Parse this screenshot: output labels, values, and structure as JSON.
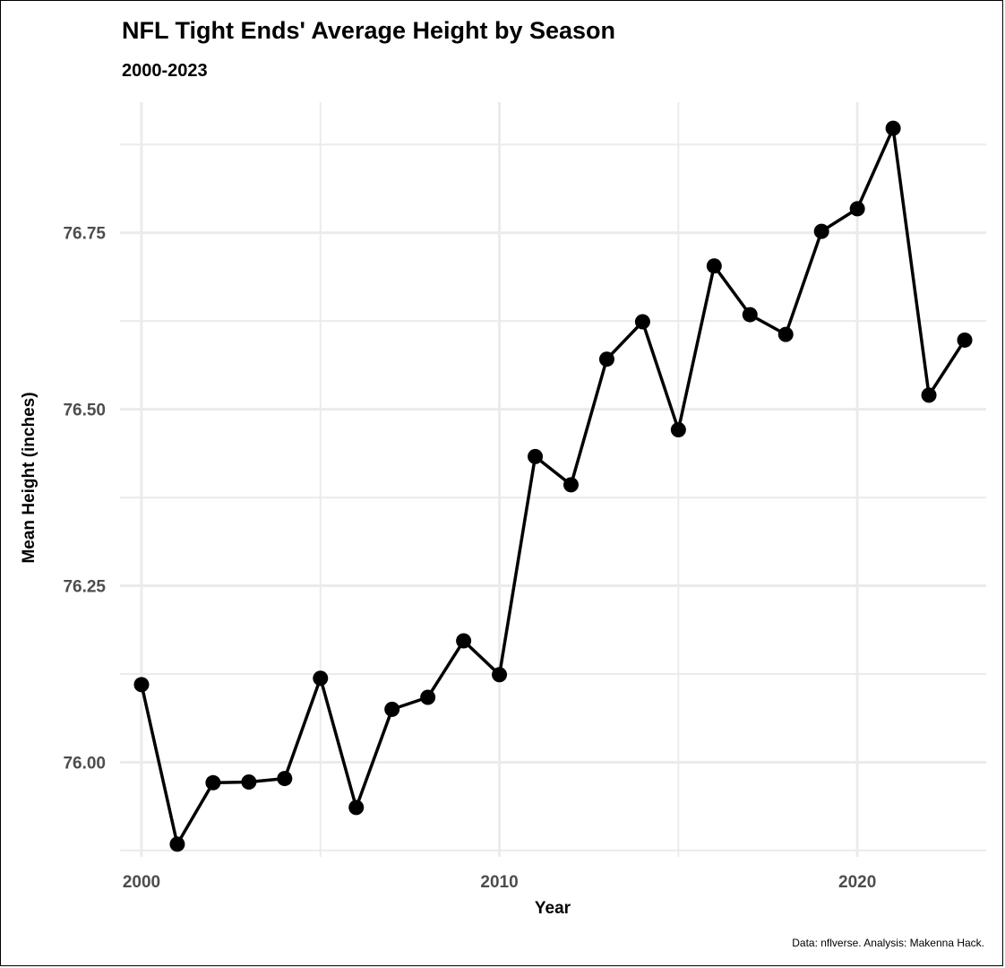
{
  "chart_data": {
    "type": "line",
    "title": "NFL Tight Ends' Average Height by Season",
    "subtitle": "2000-2023",
    "xlabel": "Year",
    "ylabel": "Mean Height (inches)",
    "caption": "Data: nflverse. Analysis: Makenna Hack.",
    "xlim": [
      1999.4,
      2023.6
    ],
    "ylim": [
      75.866,
      76.935
    ],
    "x_ticks": [
      2000,
      2010,
      2020
    ],
    "x_tick_labels": [
      "2000",
      "2010",
      "2020"
    ],
    "x_minor_ticks": [
      2005,
      2015
    ],
    "y_ticks": [
      76.0,
      76.25,
      76.5,
      76.75
    ],
    "y_tick_labels": [
      "76.00",
      "76.25",
      "76.50",
      "76.75"
    ],
    "y_minor_ticks": [
      75.875,
      76.125,
      76.375,
      76.625,
      76.875
    ],
    "grid": true,
    "legend": "none",
    "color": "#000000",
    "series": [
      {
        "x": [
          2000,
          2001,
          2002,
          2003,
          2004,
          2005,
          2006,
          2007,
          2008,
          2009,
          2010,
          2011,
          2012,
          2013,
          2014,
          2015,
          2016,
          2017,
          2018,
          2019,
          2020,
          2021,
          2022,
          2023
        ],
        "values": [
          76.11,
          75.884,
          75.971,
          75.972,
          75.977,
          76.119,
          75.936,
          76.075,
          76.092,
          76.172,
          76.124,
          76.433,
          76.393,
          76.571,
          76.624,
          76.471,
          76.703,
          76.634,
          76.606,
          76.752,
          76.784,
          76.898,
          76.52,
          76.598
        ]
      }
    ]
  }
}
